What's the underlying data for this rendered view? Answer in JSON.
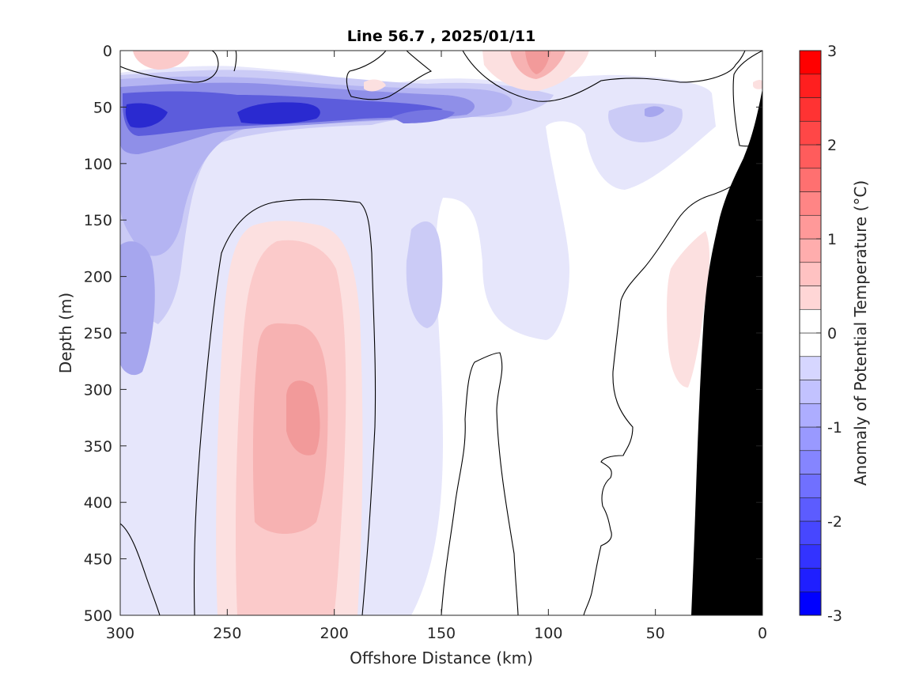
{
  "chart_data": {
    "type": "heatmap",
    "title": "Line 56.7 , 2025/01/11",
    "xlabel": "Offshore Distance (km)",
    "ylabel": "Depth (m)",
    "xlim": [
      300,
      0
    ],
    "ylim": [
      0,
      500
    ],
    "x_ticks": [
      "300",
      "250",
      "200",
      "150",
      "100",
      "50",
      "0"
    ],
    "y_ticks": [
      "0",
      "50",
      "100",
      "150",
      "200",
      "250",
      "300",
      "350",
      "400",
      "450",
      "500"
    ],
    "colorbar": {
      "label": "Anomaly of Potential Temperature (°C)",
      "range": [
        -3,
        3
      ],
      "step": 0.25,
      "tick_labels": [
        "-3",
        "-2",
        "-1",
        "0",
        "1",
        "2",
        "3"
      ]
    },
    "grid": false,
    "features": [
      {
        "kind": "cold anomaly",
        "x": 285,
        "y": 60,
        "value": -2.0
      },
      {
        "kind": "cold anomaly",
        "x": 225,
        "y": 55,
        "value": -2.25
      },
      {
        "kind": "cold anomaly",
        "x": 160,
        "y": 55,
        "value": -1.25
      },
      {
        "kind": "cold anomaly",
        "x": 55,
        "y": 55,
        "value": -0.75
      },
      {
        "kind": "cold anomaly",
        "x": 295,
        "y": 215,
        "value": -1.0
      },
      {
        "kind": "cold anomaly",
        "x": 155,
        "y": 210,
        "value": -0.5
      },
      {
        "kind": "warm anomaly",
        "x": 215,
        "y": 320,
        "value": 0.9
      },
      {
        "kind": "warm anomaly",
        "x": 105,
        "y": 15,
        "value": 0.9
      },
      {
        "kind": "warm anomaly",
        "x": 275,
        "y": 8,
        "value": 0.4
      },
      {
        "kind": "warm anomaly",
        "x": 40,
        "y": 240,
        "value": 0.3
      }
    ]
  }
}
